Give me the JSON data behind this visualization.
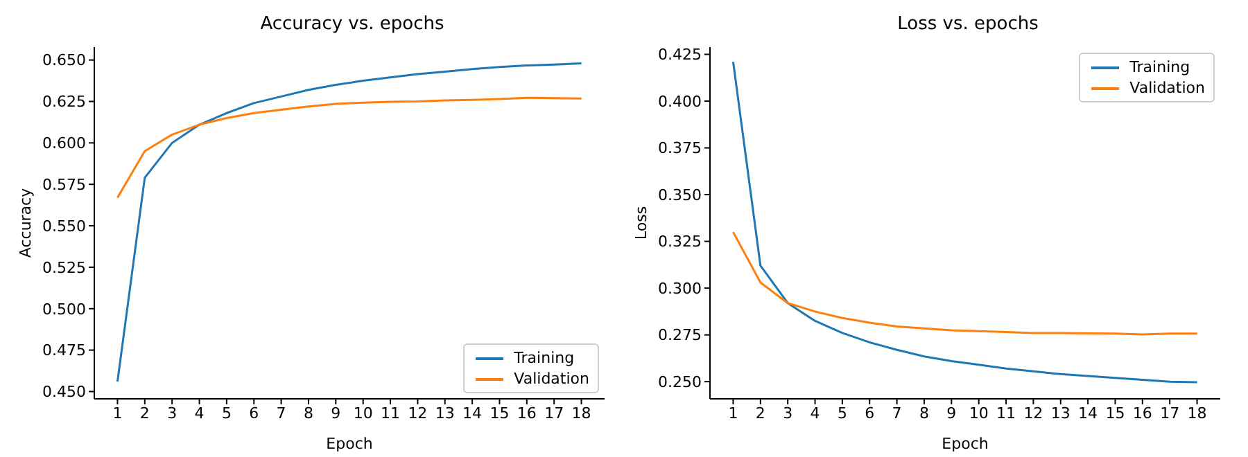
{
  "chart_data": [
    {
      "type": "line",
      "title": "Accuracy vs. epochs",
      "xlabel": "Epoch",
      "ylabel": "Accuracy",
      "x": [
        1,
        2,
        3,
        4,
        5,
        6,
        7,
        8,
        9,
        10,
        11,
        12,
        13,
        14,
        15,
        16,
        17,
        18
      ],
      "series": [
        {
          "name": "Training",
          "color": "#1f77b4",
          "values": [
            0.456,
            0.579,
            0.6,
            0.611,
            0.618,
            0.624,
            0.628,
            0.632,
            0.635,
            0.6375,
            0.6395,
            0.6415,
            0.643,
            0.6445,
            0.6458,
            0.6467,
            0.6473,
            0.648
          ]
        },
        {
          "name": "Validation",
          "color": "#ff7f0e",
          "values": [
            0.567,
            0.595,
            0.605,
            0.611,
            0.615,
            0.618,
            0.62,
            0.622,
            0.6235,
            0.6243,
            0.6248,
            0.625,
            0.6256,
            0.626,
            0.6265,
            0.6272,
            0.627,
            0.6268
          ]
        }
      ],
      "xlim": [
        0.15,
        18.85
      ],
      "xticks": [
        1,
        2,
        3,
        4,
        5,
        6,
        7,
        8,
        9,
        10,
        11,
        12,
        13,
        14,
        15,
        16,
        17,
        18
      ],
      "ylim": [
        0.4456,
        0.6578
      ],
      "yticks": [
        {
          "value": 0.45,
          "label": "0.450"
        },
        {
          "value": 0.475,
          "label": "0.475"
        },
        {
          "value": 0.5,
          "label": "0.500"
        },
        {
          "value": 0.525,
          "label": "0.525"
        },
        {
          "value": 0.55,
          "label": "0.550"
        },
        {
          "value": 0.575,
          "label": "0.575"
        },
        {
          "value": 0.6,
          "label": "0.600"
        },
        {
          "value": 0.625,
          "label": "0.625"
        },
        {
          "value": 0.65,
          "label": "0.650"
        }
      ],
      "grid": false,
      "legend": "bottom right",
      "marker": "none",
      "line_style": "solid"
    },
    {
      "type": "line",
      "title": "Loss vs. epochs",
      "xlabel": "Epoch",
      "ylabel": "Loss",
      "x": [
        1,
        2,
        3,
        4,
        5,
        6,
        7,
        8,
        9,
        10,
        11,
        12,
        13,
        14,
        15,
        16,
        17,
        18
      ],
      "series": [
        {
          "name": "Training",
          "color": "#1f77b4",
          "values": [
            0.421,
            0.312,
            0.292,
            0.2825,
            0.276,
            0.271,
            0.267,
            0.2635,
            0.261,
            0.259,
            0.257,
            0.2555,
            0.254,
            0.253,
            0.252,
            0.251,
            0.25,
            0.2497
          ]
        },
        {
          "name": "Validation",
          "color": "#ff7f0e",
          "values": [
            0.33,
            0.303,
            0.292,
            0.2875,
            0.284,
            0.2815,
            0.2795,
            0.2785,
            0.2775,
            0.277,
            0.2765,
            0.276,
            0.276,
            0.2758,
            0.2757,
            0.2752,
            0.2757,
            0.2757
          ]
        }
      ],
      "xlim": [
        0.15,
        18.85
      ],
      "xticks": [
        1,
        2,
        3,
        4,
        5,
        6,
        7,
        8,
        9,
        10,
        11,
        12,
        13,
        14,
        15,
        16,
        17,
        18
      ],
      "ylim": [
        0.2408,
        0.4289
      ],
      "yticks": [
        {
          "value": 0.25,
          "label": "0.250"
        },
        {
          "value": 0.275,
          "label": "0.275"
        },
        {
          "value": 0.3,
          "label": "0.300"
        },
        {
          "value": 0.325,
          "label": "0.325"
        },
        {
          "value": 0.35,
          "label": "0.350"
        },
        {
          "value": 0.375,
          "label": "0.375"
        },
        {
          "value": 0.4,
          "label": "0.400"
        },
        {
          "value": 0.425,
          "label": "0.425"
        }
      ],
      "grid": false,
      "legend": "top right",
      "marker": "none",
      "line_style": "solid"
    }
  ]
}
